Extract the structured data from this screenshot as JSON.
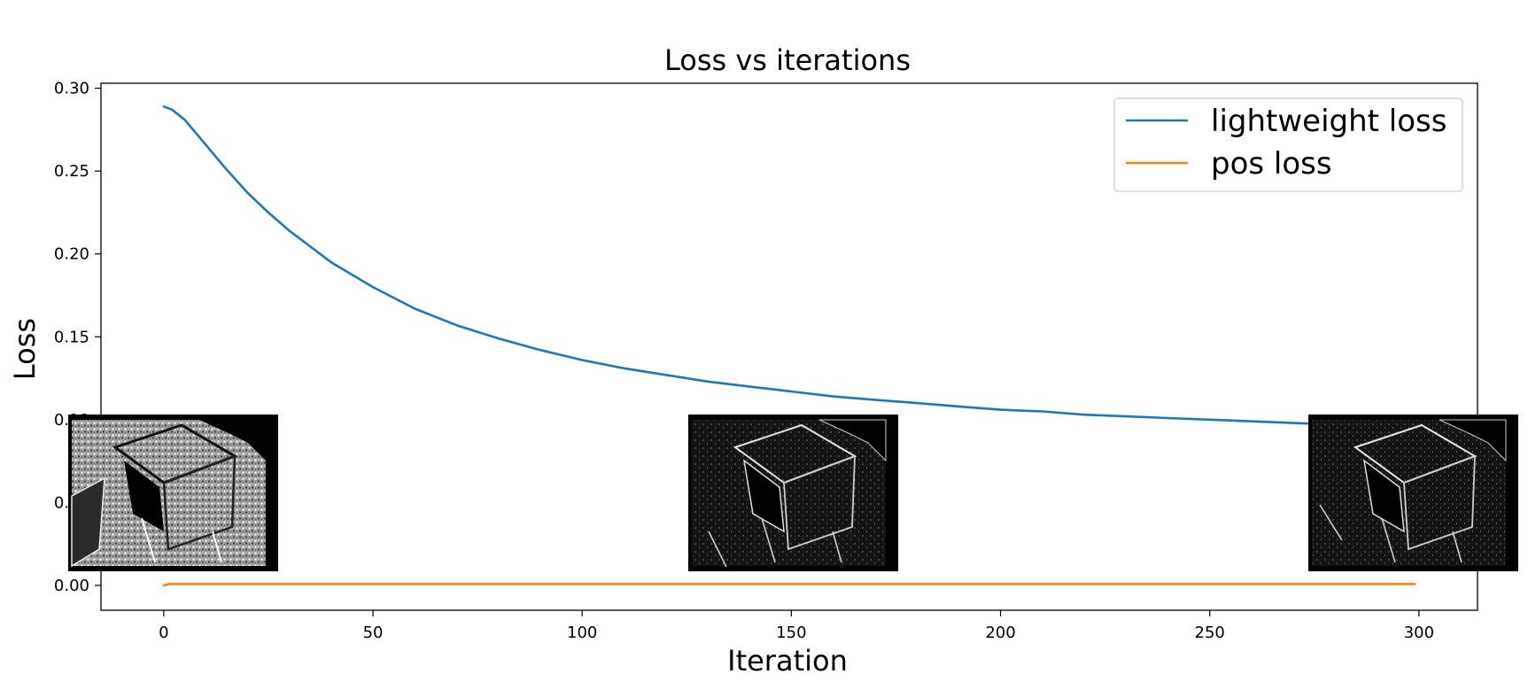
{
  "chart_data": {
    "type": "line",
    "title": "Loss vs iterations",
    "xlabel": "Iteration",
    "ylabel": "Loss",
    "xlim": [
      -15,
      314
    ],
    "ylim": [
      -0.015,
      0.303
    ],
    "xticks": [
      0,
      50,
      100,
      150,
      200,
      250,
      300
    ],
    "xtick_labels": [
      "0",
      "50",
      "100",
      "150",
      "200",
      "250",
      "300"
    ],
    "yticks": [
      0.0,
      0.05,
      0.1,
      0.15,
      0.2,
      0.25,
      0.3
    ],
    "ytick_labels": [
      "0.00",
      "0.05",
      "0.10",
      "0.15",
      "0.20",
      "0.25",
      "0.30"
    ],
    "grid": false,
    "legend_position": "top-right",
    "series": [
      {
        "name": "lightweight loss",
        "color": "#1f77b4",
        "x": [
          0,
          2,
          5,
          10,
          15,
          20,
          25,
          30,
          40,
          50,
          60,
          70,
          80,
          90,
          100,
          110,
          120,
          130,
          140,
          150,
          160,
          170,
          180,
          190,
          200,
          210,
          220,
          230,
          240,
          250,
          260,
          270,
          280,
          290,
          299
        ],
        "y": [
          0.289,
          0.287,
          0.281,
          0.266,
          0.251,
          0.237,
          0.225,
          0.214,
          0.195,
          0.18,
          0.167,
          0.157,
          0.149,
          0.142,
          0.136,
          0.131,
          0.127,
          0.123,
          0.12,
          0.117,
          0.114,
          0.112,
          0.11,
          0.108,
          0.106,
          0.105,
          0.103,
          0.102,
          0.101,
          0.1,
          0.099,
          0.098,
          0.097,
          0.096,
          0.095
        ]
      },
      {
        "name": "pos loss",
        "color": "#ff7f0e",
        "x": [
          0,
          1,
          2,
          50,
          100,
          150,
          200,
          250,
          299
        ],
        "y": [
          0.0,
          0.0007,
          0.0008,
          0.0008,
          0.0008,
          0.0008,
          0.0008,
          0.0008,
          0.0008
        ]
      }
    ],
    "inset_images": [
      {
        "name": "iteration-0-edge-map",
        "at_iteration": 0,
        "tone": "light"
      },
      {
        "name": "iteration-150-edge-map",
        "at_iteration": 150,
        "tone": "dark"
      },
      {
        "name": "iteration-300-edge-map",
        "at_iteration": 300,
        "tone": "dark"
      }
    ]
  }
}
